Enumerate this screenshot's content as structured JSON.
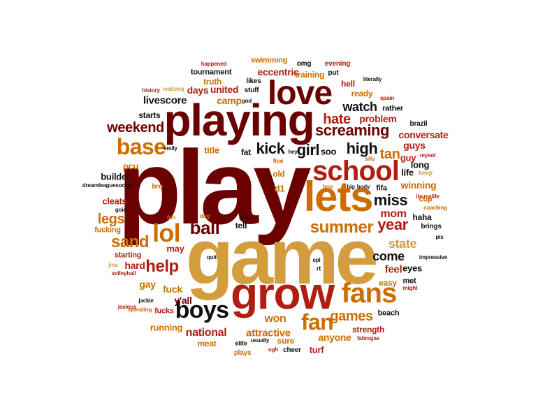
{
  "palette": {
    "dark_red": "#6b0000",
    "red": "#b01e12",
    "orange": "#cc6d00",
    "gold": "#d39c3c",
    "black": "#111111"
  },
  "words": [
    "play",
    "game",
    "playing",
    "grow",
    "lets",
    "love",
    "school",
    "fans",
    "boys",
    "lol",
    "fan",
    "ball",
    "summer",
    "help",
    "base",
    "weekend",
    "screaming",
    "hate",
    "kick",
    "girl",
    "high",
    "sand",
    "year",
    "miss",
    "state",
    "mom",
    "come",
    "legs",
    "watch",
    "games",
    "won",
    "national",
    "anyone",
    "attractive",
    "problem",
    "conversate",
    "winning",
    "tan",
    "soo",
    "livescore",
    "camp",
    "united",
    "days",
    "stuff",
    "tournament",
    "eccentric",
    "swimming",
    "training",
    "likes",
    "omg",
    "evening",
    "put",
    "literally",
    "hell",
    "ready",
    "truth",
    "happened",
    "history",
    "realizing",
    "god",
    "spain",
    "rather",
    "brazil",
    "starts",
    "title",
    "fat",
    "builder",
    "emily",
    "five",
    "old",
    "silly",
    "hey",
    "guys",
    "guy",
    "reysol",
    "long",
    "keep",
    "life",
    "pcu",
    "bro",
    "dreamleaguesoccer",
    "d1",
    "bop",
    "big",
    "body",
    "fifa",
    "ibsmylife",
    "cleats",
    "goin",
    "cup",
    "coaching",
    "haha",
    "brings",
    "fun",
    "dog",
    "glad",
    "tell",
    "pis",
    "fucking",
    "may",
    "starting",
    "quit",
    "impressive",
    "jina",
    "hard",
    "volleyball",
    "epl",
    "rt",
    "feel",
    "eyes",
    "gay",
    "met",
    "might",
    "easy",
    "fuck",
    "jealous",
    "jackie",
    "y'all",
    "fucks",
    "spending",
    "beach",
    "running",
    "strength",
    "meat",
    "elite",
    "usually",
    "sure",
    "cheer",
    "turf",
    "fabregas",
    "plays",
    "ugh"
  ]
}
